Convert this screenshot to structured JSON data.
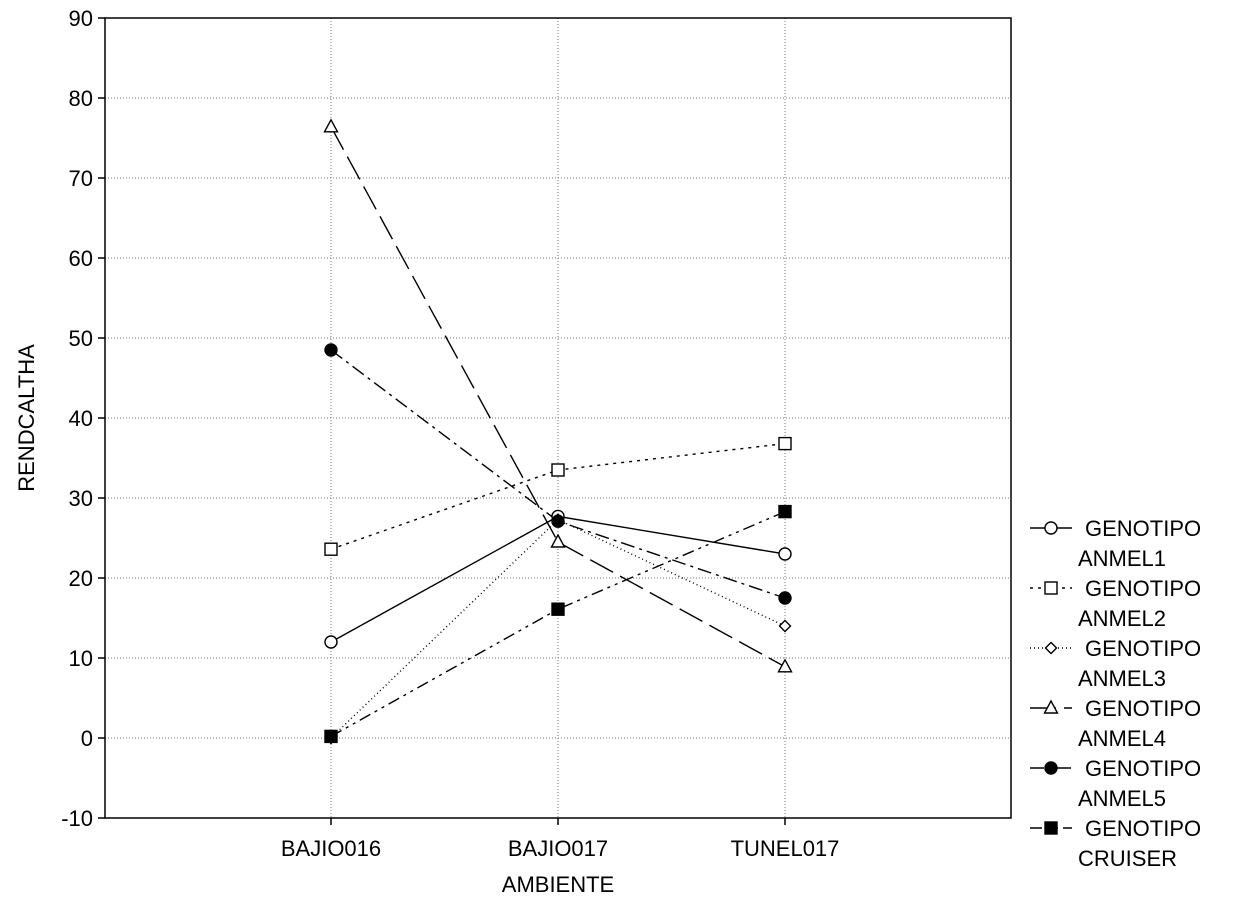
{
  "chart_data": {
    "type": "line",
    "title": "",
    "xlabel": "AMBIENTE",
    "ylabel": "RENDCALTHA",
    "categories": [
      "BAJIO016",
      "BAJIO017",
      "TUNEL017"
    ],
    "ylim": [
      -10,
      90
    ],
    "yticks": [
      -10,
      0,
      10,
      20,
      30,
      40,
      50,
      60,
      70,
      80,
      90
    ],
    "grid": true,
    "legend_position": "right",
    "series": [
      {
        "name": "GENOTIPO",
        "name2": "ANMEL1",
        "values": [
          12.0,
          27.7,
          23.0
        ],
        "marker": "circle-open",
        "dash": "solid"
      },
      {
        "name": "GENOTIPO",
        "name2": "ANMEL2",
        "values": [
          23.6,
          33.5,
          36.8
        ],
        "marker": "square-open",
        "dash": "dotted"
      },
      {
        "name": "GENOTIPO",
        "name2": "ANMEL3",
        "values": [
          0.0,
          27.3,
          14.0
        ],
        "marker": "diamond-open",
        "dash": "fine-dotted"
      },
      {
        "name": "GENOTIPO",
        "name2": "ANMEL4",
        "values": [
          76.4,
          24.5,
          8.9
        ],
        "marker": "triangle-open",
        "dash": "long-dash"
      },
      {
        "name": "GENOTIPO",
        "name2": "ANMEL5",
        "values": [
          48.5,
          27.1,
          17.5
        ],
        "marker": "circle-filled",
        "dash": "dash-dot"
      },
      {
        "name": "GENOTIPO",
        "name2": "CRUISER",
        "values": [
          0.2,
          16.1,
          28.3
        ],
        "marker": "square-filled",
        "dash": "dash-dot-dot"
      }
    ]
  }
}
